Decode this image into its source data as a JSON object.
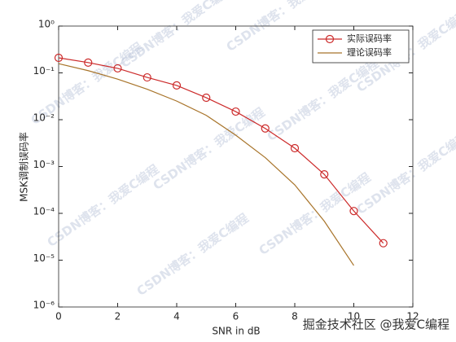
{
  "chart_data": {
    "type": "line",
    "log_scale_y": true,
    "x_label": "SNR in dB",
    "y_label": "MSK调制误码率",
    "series": [
      {
        "name": "实际误码率",
        "color": "#cc2a2a",
        "marker": "circle",
        "x": [
          0,
          1,
          2,
          3,
          4,
          5,
          6,
          7,
          8,
          9,
          10,
          11
        ],
        "values": [
          0.21,
          0.166,
          0.125,
          0.08,
          0.054,
          0.0295,
          0.0149,
          0.0065,
          0.00246,
          0.00068,
          0.000112,
          2.3e-05
        ]
      },
      {
        "name": "理论误码率",
        "color": "#a8742a",
        "marker": "none",
        "x": [
          0,
          1,
          2,
          3,
          4,
          5,
          6,
          7,
          8,
          9,
          10
        ],
        "values": [
          0.1573,
          0.1116,
          0.0736,
          0.0448,
          0.025,
          0.0124,
          0.00468,
          0.00155,
          0.000406,
          6.8e-05,
          7.7e-06
        ]
      }
    ],
    "xlim": [
      0,
      12
    ],
    "xticks": [
      0,
      2,
      4,
      6,
      8,
      10,
      12
    ],
    "ylim": [
      1e-06,
      1
    ],
    "yticks": [
      {
        "value": 1e-06,
        "label": "10⁻⁶"
      },
      {
        "value": 1e-05,
        "label": "10⁻⁵"
      },
      {
        "value": 0.0001,
        "label": "10⁻⁴"
      },
      {
        "value": 0.001,
        "label": "10⁻³"
      },
      {
        "value": 0.01,
        "label": "10⁻²"
      },
      {
        "value": 0.1,
        "label": "10⁻¹"
      },
      {
        "value": 1,
        "label": "10⁰"
      }
    ],
    "legend": "upper right",
    "watermark": "CSDN博客：我爱C编程",
    "source_watermark": "掘金技术社区 @我爱C编程"
  }
}
